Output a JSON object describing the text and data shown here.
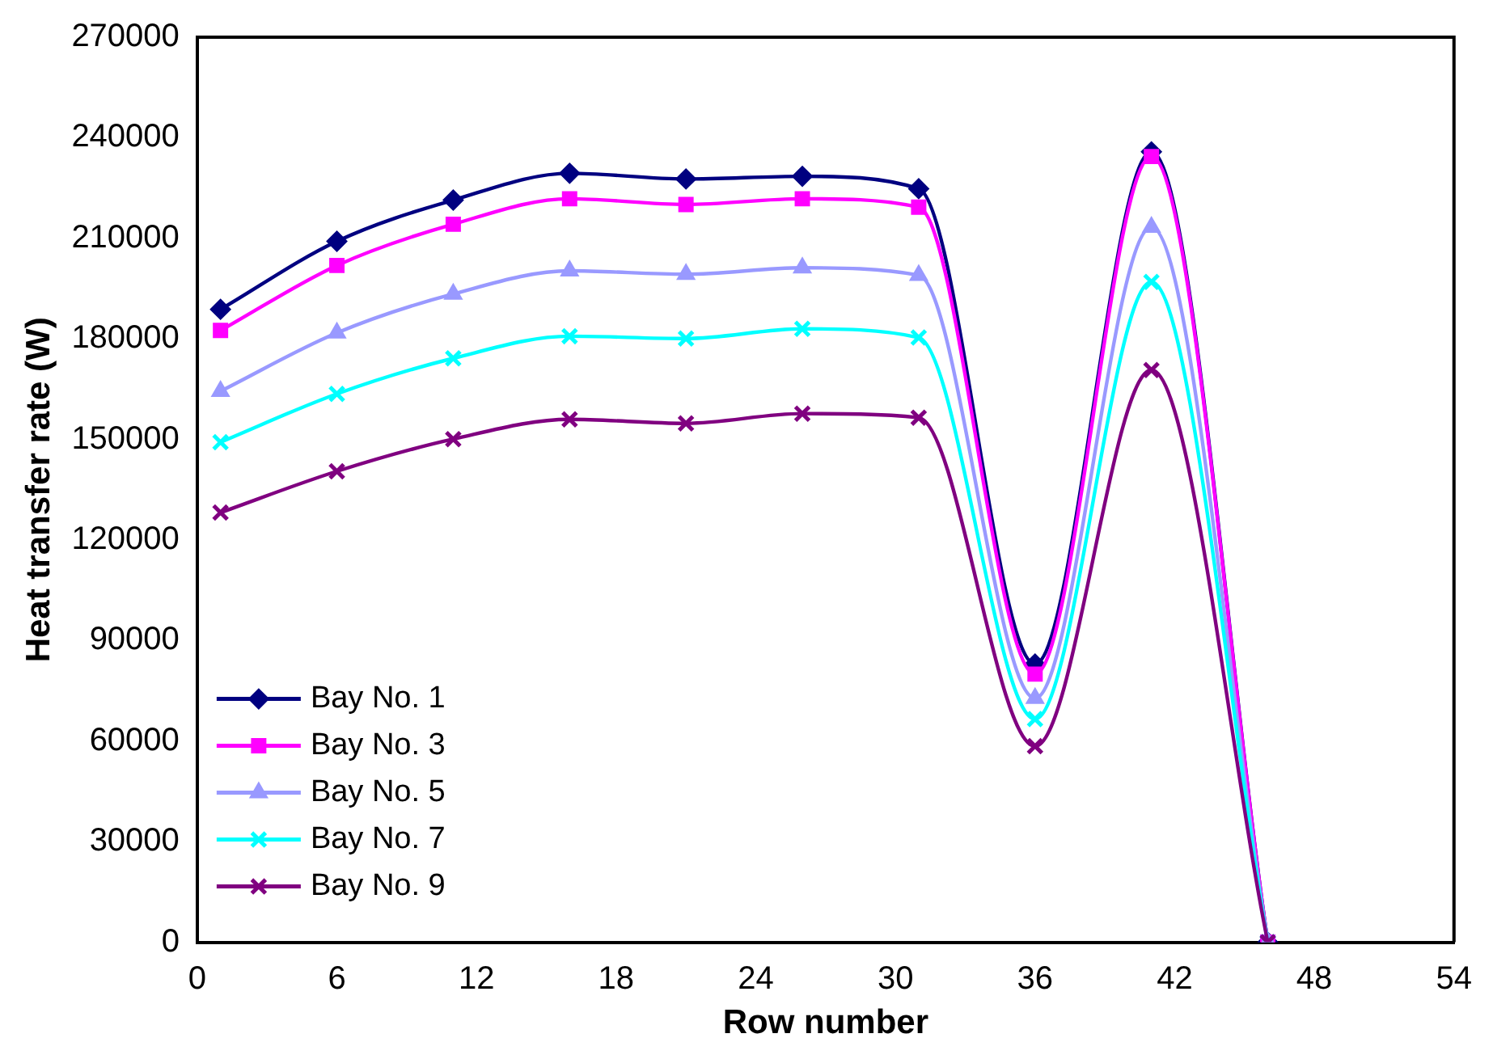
{
  "chart_data": {
    "type": "line",
    "xlabel": "Row number",
    "ylabel": "Heat transfer rate (W)",
    "x": [
      1,
      6,
      11,
      16,
      21,
      26,
      31,
      36,
      41,
      46
    ],
    "xlim": [
      0,
      54
    ],
    "xticks": [
      0,
      6,
      12,
      18,
      24,
      30,
      36,
      42,
      48,
      54
    ],
    "ylim": [
      0,
      270000
    ],
    "yticks": [
      0,
      30000,
      60000,
      90000,
      120000,
      150000,
      180000,
      210000,
      240000,
      270000
    ],
    "grid": false,
    "legend": "bottom left",
    "series": [
      {
        "name": "Bay No. 1",
        "color": "#000080",
        "marker": "diamond",
        "values": [
          188800,
          209100,
          221400,
          229400,
          227700,
          228500,
          224800,
          83000,
          235800,
          0
        ]
      },
      {
        "name": "Bay No. 3",
        "color": "#ff00ff",
        "marker": "square",
        "values": [
          182500,
          201900,
          214200,
          221800,
          220100,
          221800,
          219300,
          80000,
          234400,
          0
        ]
      },
      {
        "name": "Bay No. 5",
        "color": "#9999ff",
        "marker": "triangle",
        "values": [
          164400,
          181800,
          193400,
          200300,
          199300,
          201200,
          199000,
          72800,
          213300,
          0
        ]
      },
      {
        "name": "Bay No. 7",
        "color": "#00ffff",
        "marker": "cross",
        "values": [
          149200,
          163600,
          174200,
          180800,
          180100,
          183000,
          180400,
          66600,
          197000,
          0
        ]
      },
      {
        "name": "Bay No. 9",
        "color": "#800080",
        "marker": "cross",
        "values": [
          128200,
          140500,
          150100,
          156000,
          154800,
          157700,
          156500,
          58500,
          170700,
          0
        ]
      }
    ]
  }
}
